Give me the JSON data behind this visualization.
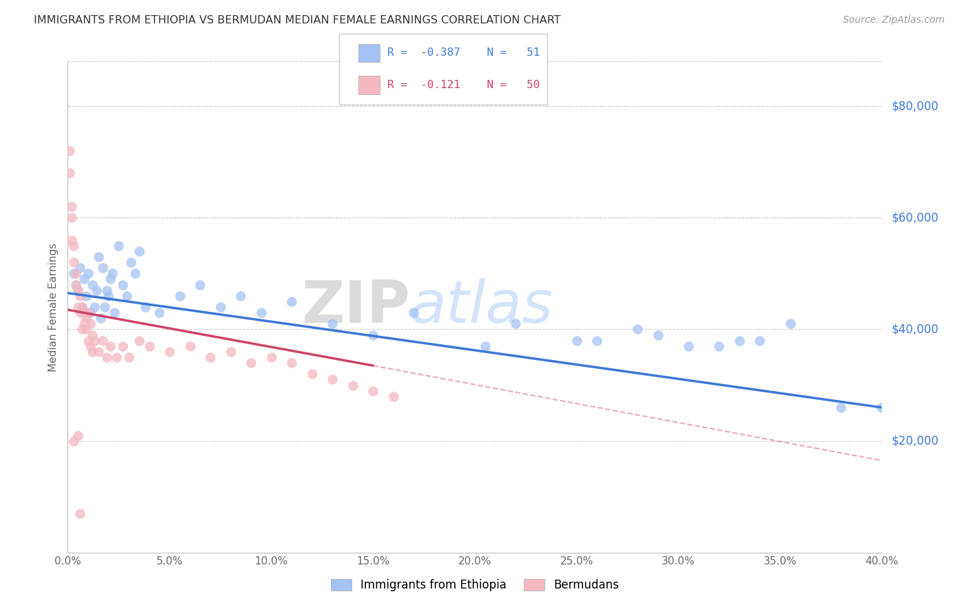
{
  "title": "IMMIGRANTS FROM ETHIOPIA VS BERMUDAN MEDIAN FEMALE EARNINGS CORRELATION CHART",
  "source": "Source: ZipAtlas.com",
  "ylabel": "Median Female Earnings",
  "xlabel_ticks": [
    "0.0%",
    "5.0%",
    "10.0%",
    "15.0%",
    "20.0%",
    "25.0%",
    "30.0%",
    "35.0%",
    "40.0%"
  ],
  "xlabel_vals": [
    0.0,
    5.0,
    10.0,
    15.0,
    20.0,
    25.0,
    30.0,
    35.0,
    40.0
  ],
  "ylabel_ticks": [
    20000,
    40000,
    60000,
    80000
  ],
  "ylabel_labels": [
    "$20,000",
    "$40,000",
    "$60,000",
    "$80,000"
  ],
  "xlim": [
    0.0,
    40.0
  ],
  "ylim": [
    0,
    88000
  ],
  "legend_label1": "Immigrants from Ethiopia",
  "legend_label2": "Bermudans",
  "color_blue": "#a4c2f4",
  "color_pink": "#f4b8c1",
  "color_blue_line": "#3c78d8",
  "color_pink_line": "#cc4466",
  "title_color": "#333333",
  "source_color": "#999999",
  "right_label_color": "#3c78d8",
  "watermark_color_zip": "#c8d8f0",
  "watermark_color_atlas": "#b8d0f8",
  "blue_line_x0": 0.0,
  "blue_line_y0": 46500,
  "blue_line_x1": 40.0,
  "blue_line_y1": 26000,
  "pink_solid_x0": 0.0,
  "pink_solid_y0": 43500,
  "pink_solid_x1": 15.0,
  "pink_solid_y1": 33500,
  "pink_dash_x0": 15.0,
  "pink_dash_y0": 33500,
  "pink_dash_x1": 40.0,
  "pink_dash_y1": 16500,
  "blue_scatter_x": [
    0.3,
    0.4,
    0.5,
    0.6,
    0.7,
    0.8,
    0.9,
    1.0,
    1.1,
    1.2,
    1.3,
    1.4,
    1.5,
    1.6,
    1.7,
    1.8,
    1.9,
    2.0,
    2.1,
    2.2,
    2.3,
    2.5,
    2.7,
    2.9,
    3.1,
    3.3,
    3.5,
    3.8,
    4.5,
    5.5,
    6.5,
    7.5,
    8.5,
    9.5,
    11.0,
    13.0,
    15.0,
    17.0,
    20.5,
    22.0,
    25.0,
    26.0,
    28.0,
    29.0,
    30.5,
    32.0,
    33.0,
    34.0,
    35.5,
    38.0,
    40.0
  ],
  "blue_scatter_y": [
    50000,
    48000,
    47000,
    51000,
    44000,
    49000,
    46000,
    50000,
    43000,
    48000,
    44000,
    47000,
    53000,
    42000,
    51000,
    44000,
    47000,
    46000,
    49000,
    50000,
    43000,
    55000,
    48000,
    46000,
    52000,
    50000,
    54000,
    44000,
    43000,
    46000,
    48000,
    44000,
    46000,
    43000,
    45000,
    41000,
    39000,
    43000,
    37000,
    41000,
    38000,
    38000,
    40000,
    39000,
    37000,
    37000,
    38000,
    38000,
    41000,
    26000,
    26000
  ],
  "pink_scatter_x": [
    0.1,
    0.1,
    0.2,
    0.2,
    0.3,
    0.3,
    0.4,
    0.4,
    0.5,
    0.5,
    0.6,
    0.6,
    0.7,
    0.7,
    0.8,
    0.8,
    0.9,
    0.9,
    1.0,
    1.0,
    1.1,
    1.1,
    1.2,
    1.2,
    1.3,
    1.5,
    1.7,
    1.9,
    2.1,
    2.4,
    2.7,
    3.0,
    3.5,
    4.0,
    5.0,
    6.0,
    7.0,
    8.0,
    9.0,
    10.0,
    11.0,
    12.0,
    13.0,
    14.0,
    15.0,
    16.0,
    0.2,
    0.3,
    0.5,
    0.6
  ],
  "pink_scatter_y": [
    72000,
    68000,
    62000,
    56000,
    55000,
    52000,
    48000,
    50000,
    44000,
    47000,
    46000,
    43000,
    44000,
    40000,
    43000,
    41000,
    40000,
    42000,
    38000,
    43000,
    41000,
    37000,
    39000,
    36000,
    38000,
    36000,
    38000,
    35000,
    37000,
    35000,
    37000,
    35000,
    38000,
    37000,
    36000,
    37000,
    35000,
    36000,
    34000,
    35000,
    34000,
    32000,
    31000,
    30000,
    29000,
    28000,
    60000,
    20000,
    21000,
    7000
  ]
}
